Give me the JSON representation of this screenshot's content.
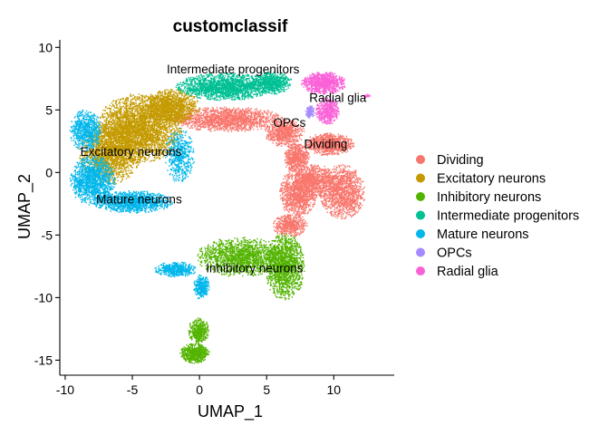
{
  "chart_data": {
    "type": "scatter",
    "title": "customclassif",
    "xlabel": "UMAP_1",
    "ylabel": "UMAP_2",
    "xlim": [
      -10.4,
      14.5
    ],
    "ylim": [
      -16.2,
      10.6
    ],
    "xticks": [
      -10,
      -5,
      0,
      5,
      10
    ],
    "yticks": [
      -15,
      -10,
      -5,
      0,
      5,
      10
    ],
    "grid": false,
    "legend_position": "right",
    "series": [
      {
        "name": "Dividing",
        "color": "#F8766D",
        "regions": [
          {
            "cx": 2.0,
            "cy": 4.3,
            "rx": 4.2,
            "ry": 1.0,
            "n": 1600
          },
          {
            "cx": 6.3,
            "cy": 3.2,
            "rx": 1.5,
            "ry": 1.1,
            "n": 700
          },
          {
            "cx": 9.6,
            "cy": 2.3,
            "rx": 1.9,
            "ry": 0.9,
            "n": 900
          },
          {
            "cx": 7.2,
            "cy": 1.2,
            "rx": 1.0,
            "ry": 1.2,
            "n": 600
          },
          {
            "cx": 7.3,
            "cy": -1.6,
            "rx": 1.4,
            "ry": 2.0,
            "n": 1100
          },
          {
            "cx": 10.6,
            "cy": -1.5,
            "rx": 1.7,
            "ry": 2.2,
            "n": 1300
          },
          {
            "cx": 8.6,
            "cy": -0.6,
            "rx": 1.4,
            "ry": 1.3,
            "n": 700
          },
          {
            "cx": 6.7,
            "cy": -4.2,
            "rx": 1.3,
            "ry": 0.9,
            "n": 500
          }
        ]
      },
      {
        "name": "Excitatory neurons",
        "color": "#C49A00",
        "regions": [
          {
            "cx": -4.5,
            "cy": 3.6,
            "rx": 3.2,
            "ry": 2.8,
            "n": 3200
          },
          {
            "cx": -6.7,
            "cy": 1.6,
            "rx": 2.3,
            "ry": 2.5,
            "n": 1800
          },
          {
            "cx": -2.1,
            "cy": 5.3,
            "rx": 2.1,
            "ry": 1.4,
            "n": 1200
          }
        ]
      },
      {
        "name": "Inhibitory neurons",
        "color": "#53B400",
        "regions": [
          {
            "cx": 3.0,
            "cy": -6.7,
            "rx": 3.3,
            "ry": 1.6,
            "n": 1600
          },
          {
            "cx": 6.3,
            "cy": -7.5,
            "rx": 1.5,
            "ry": 2.7,
            "n": 1500
          },
          {
            "cx": -0.4,
            "cy": -14.4,
            "rx": 1.1,
            "ry": 0.8,
            "n": 600
          },
          {
            "cx": -0.1,
            "cy": -12.6,
            "rx": 0.8,
            "ry": 1.0,
            "n": 400
          }
        ]
      },
      {
        "name": "Intermediate progenitors",
        "color": "#00C094",
        "regions": [
          {
            "cx": 1.8,
            "cy": 6.9,
            "rx": 3.6,
            "ry": 1.1,
            "n": 1800
          },
          {
            "cx": 5.3,
            "cy": 7.2,
            "rx": 1.6,
            "ry": 0.9,
            "n": 700
          }
        ]
      },
      {
        "name": "Mature neurons",
        "color": "#00B6EB",
        "regions": [
          {
            "cx": -8.0,
            "cy": -0.6,
            "rx": 1.7,
            "ry": 2.0,
            "n": 1300
          },
          {
            "cx": -5.0,
            "cy": -2.3,
            "rx": 3.0,
            "ry": 0.9,
            "n": 1300
          },
          {
            "cx": -8.5,
            "cy": 3.4,
            "rx": 1.2,
            "ry": 1.7,
            "n": 700
          },
          {
            "cx": -1.5,
            "cy": 1.4,
            "rx": 1.1,
            "ry": 2.2,
            "n": 500
          },
          {
            "cx": -1.8,
            "cy": -7.7,
            "rx": 1.6,
            "ry": 0.6,
            "n": 500
          },
          {
            "cx": 0.1,
            "cy": -9.1,
            "rx": 0.6,
            "ry": 1.0,
            "n": 300
          }
        ]
      },
      {
        "name": "OPCs",
        "color": "#A58AFF",
        "regions": [
          {
            "cx": 8.2,
            "cy": 4.9,
            "rx": 0.35,
            "ry": 0.5,
            "n": 120
          }
        ]
      },
      {
        "name": "Radial glia",
        "color": "#FB61D7",
        "regions": [
          {
            "cx": 9.2,
            "cy": 7.2,
            "rx": 1.7,
            "ry": 0.9,
            "n": 900
          },
          {
            "cx": 9.5,
            "cy": 5.0,
            "rx": 0.9,
            "ry": 1.1,
            "n": 500
          },
          {
            "cx": 12.4,
            "cy": 6.2,
            "rx": 0.3,
            "ry": 0.15,
            "n": 20
          }
        ]
      }
    ],
    "annotations": [
      {
        "text": "Intermediate progenitors",
        "x": 2.5,
        "y": 8.3
      },
      {
        "text": "Radial glia",
        "x": 10.3,
        "y": 6.0
      },
      {
        "text": "OPCs",
        "x": 6.7,
        "y": 4.0
      },
      {
        "text": "Dividing",
        "x": 9.4,
        "y": 2.3
      },
      {
        "text": "Excitatory neurons",
        "x": -5.1,
        "y": 1.7
      },
      {
        "text": "Mature neurons",
        "x": -4.5,
        "y": -2.1
      },
      {
        "text": "Inhibitory neurons",
        "x": 4.1,
        "y": -7.6
      }
    ]
  }
}
